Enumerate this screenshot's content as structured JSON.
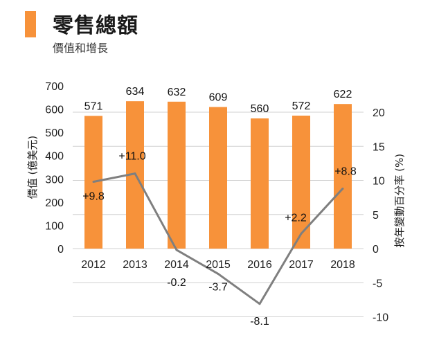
{
  "header": {
    "title": "零售總額",
    "subtitle": "價值和增長",
    "accent_color": "#f7923a"
  },
  "chart_data": {
    "type": "bar+line",
    "title": "零售總額",
    "subtitle": "價值和增長",
    "categories": [
      "2012",
      "2013",
      "2014",
      "2015",
      "2016",
      "2017",
      "2018"
    ],
    "series": [
      {
        "name": "價值",
        "type": "bar",
        "axis": "left",
        "color": "#f7923a",
        "values": [
          571,
          634,
          632,
          609,
          560,
          572,
          622
        ],
        "labels": [
          "571",
          "634",
          "632",
          "609",
          "560",
          "572",
          "622"
        ]
      },
      {
        "name": "按年變動百分率",
        "type": "line",
        "axis": "right",
        "color": "#7f7f7f",
        "values": [
          9.8,
          11.0,
          -0.2,
          -3.7,
          -8.1,
          2.2,
          8.8
        ],
        "labels": [
          "+9.8",
          "+11.0",
          "-0.2",
          "-3.7",
          "-8.1",
          "+2.2",
          "+8.8"
        ]
      }
    ],
    "y_left": {
      "label": "價值 (億美元)",
      "range": [
        0,
        700
      ],
      "ticks": [
        "0",
        "100",
        "200",
        "300",
        "400",
        "500",
        "600",
        "700"
      ]
    },
    "y_right": {
      "label": "按年變動百分率 (%)",
      "range": [
        -10,
        20
      ],
      "ticks": [
        "-10",
        "-5",
        "0",
        "5",
        "10",
        "15",
        "20"
      ]
    },
    "grid": true
  }
}
